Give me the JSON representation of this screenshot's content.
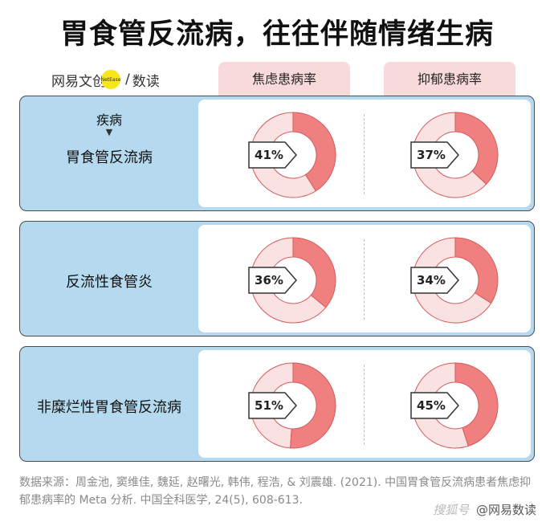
{
  "title": "胃食管反流病，往往伴随情绪生病",
  "brand": {
    "left": "网易文创",
    "dot": "NetEase",
    "sep": "/",
    "right": "数读"
  },
  "columns": [
    "焦虑患病率",
    "抑郁患病率"
  ],
  "disease_header": "疾病",
  "chart_data": {
    "type": "donut",
    "title": "胃食管反流病，往往伴随情绪生病",
    "unit": "%",
    "categories": [
      "胃食管反流病",
      "反流性食管炎",
      "非糜烂性胃食管反流病"
    ],
    "series": [
      {
        "name": "焦虑患病率",
        "values": [
          41,
          36,
          51
        ]
      },
      {
        "name": "抑郁患病率",
        "values": [
          37,
          34,
          45
        ]
      }
    ],
    "labels": [
      [
        "41%",
        "37%"
      ],
      [
        "36%",
        "34%"
      ],
      [
        "51%",
        "45%"
      ]
    ],
    "colors": {
      "value": "#f08080",
      "rest": "#fbe2e2",
      "stroke": "#d45b5b"
    }
  },
  "source": "数据来源：周金池, 窦维佳, 魏延, 赵曙光, 韩伟, 程浩, & 刘震雄. (2021). 中国胃食管反流病患者焦虑抑郁患病率的 Meta 分析. 中国全科医学, 24(5), 608-613.",
  "watermark": {
    "sohu": "搜狐号",
    "text": "@网易数读"
  }
}
